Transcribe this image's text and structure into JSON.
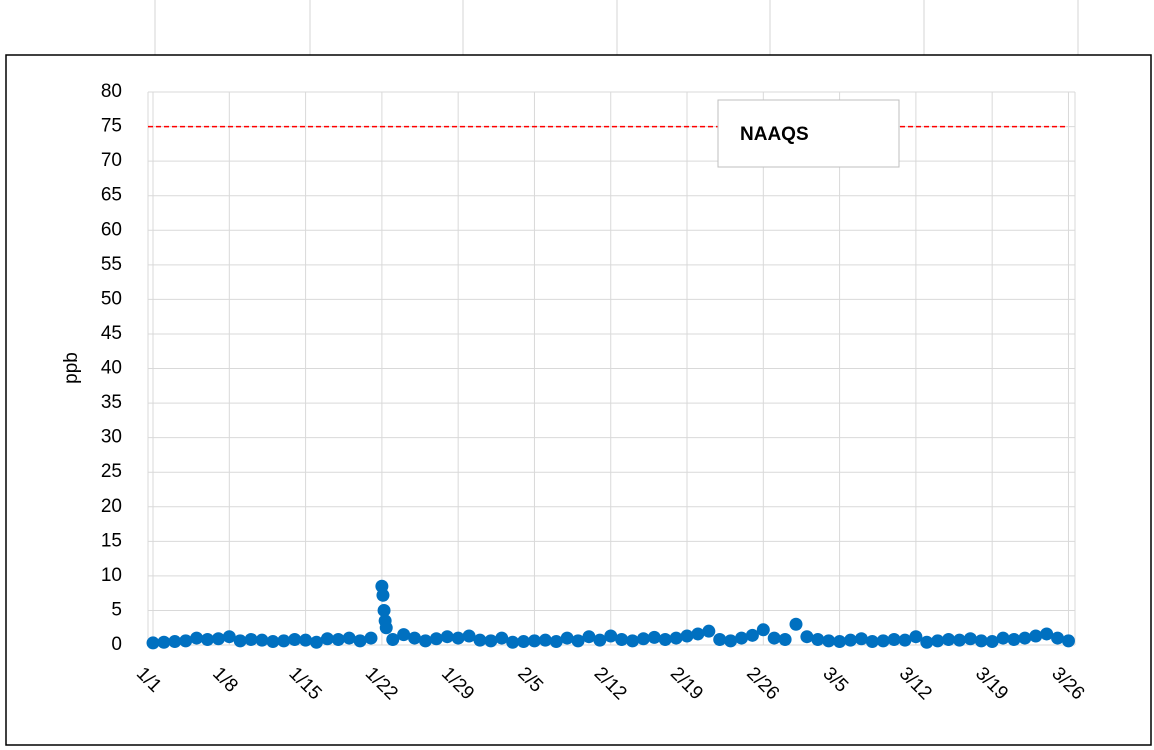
{
  "chart_data": {
    "type": "scatter",
    "y_label": "ppb",
    "x": [
      0,
      1,
      2,
      3,
      4,
      5,
      6,
      7,
      8,
      9,
      10,
      11,
      12,
      13,
      14,
      15,
      16,
      17,
      18,
      19,
      20,
      21,
      21.1,
      21.2,
      21.3,
      21.4,
      22,
      23,
      24,
      25,
      26,
      27,
      28,
      29,
      30,
      31,
      32,
      33,
      34,
      35,
      36,
      37,
      38,
      39,
      40,
      41,
      42,
      43,
      44,
      45,
      46,
      47,
      48,
      49,
      50,
      51,
      52,
      53,
      54,
      55,
      56,
      57,
      58,
      59,
      60,
      61,
      62,
      63,
      64,
      65,
      66,
      67,
      68,
      69,
      70,
      71,
      72,
      73,
      74,
      75,
      76,
      77,
      78,
      79,
      80,
      81,
      82,
      83,
      84
    ],
    "values": [
      0.3,
      0.4,
      0.5,
      0.6,
      1.0,
      0.8,
      0.9,
      1.2,
      0.6,
      0.8,
      0.7,
      0.5,
      0.6,
      0.8,
      0.7,
      0.4,
      0.9,
      0.8,
      1.0,
      0.6,
      1.0,
      8.5,
      7.2,
      5.0,
      3.5,
      2.5,
      0.8,
      1.5,
      1.0,
      0.6,
      0.9,
      1.2,
      1.0,
      1.3,
      0.7,
      0.6,
      1.0,
      0.4,
      0.5,
      0.6,
      0.7,
      0.5,
      1.0,
      0.6,
      1.2,
      0.7,
      1.3,
      0.8,
      0.6,
      0.9,
      1.1,
      0.8,
      1.0,
      1.3,
      1.6,
      2.0,
      0.8,
      0.6,
      1.0,
      1.4,
      2.2,
      1.0,
      0.8,
      3.0,
      1.2,
      0.8,
      0.6,
      0.5,
      0.7,
      0.9,
      0.5,
      0.6,
      0.8,
      0.7,
      1.2,
      0.4,
      0.6,
      0.8,
      0.7,
      0.9,
      0.6,
      0.5,
      1.0,
      0.8,
      1.0,
      1.3,
      1.6,
      1.0,
      0.6
    ],
    "color": "#0070c0",
    "xlim": [
      -0.46,
      84.6
    ],
    "xticks": [
      {
        "value": 0,
        "label": "1/1"
      },
      {
        "value": 7,
        "label": "1/8"
      },
      {
        "value": 14,
        "label": "1/15"
      },
      {
        "value": 21,
        "label": "1/22"
      },
      {
        "value": 28,
        "label": "1/29"
      },
      {
        "value": 35,
        "label": "2/5"
      },
      {
        "value": 42,
        "label": "2/12"
      },
      {
        "value": 49,
        "label": "2/19"
      },
      {
        "value": 56,
        "label": "2/26"
      },
      {
        "value": 63,
        "label": "3/5"
      },
      {
        "value": 70,
        "label": "3/12"
      },
      {
        "value": 77,
        "label": "3/19"
      },
      {
        "value": 84,
        "label": "3/26"
      }
    ],
    "ylim": [
      0,
      80
    ],
    "yticks": [
      0,
      5,
      10,
      15,
      20,
      25,
      30,
      35,
      40,
      45,
      50,
      55,
      60,
      65,
      70,
      75,
      80
    ],
    "grid": true,
    "reference_line": {
      "value": 75,
      "label": "NAAQS",
      "color": "#ff0000"
    }
  }
}
